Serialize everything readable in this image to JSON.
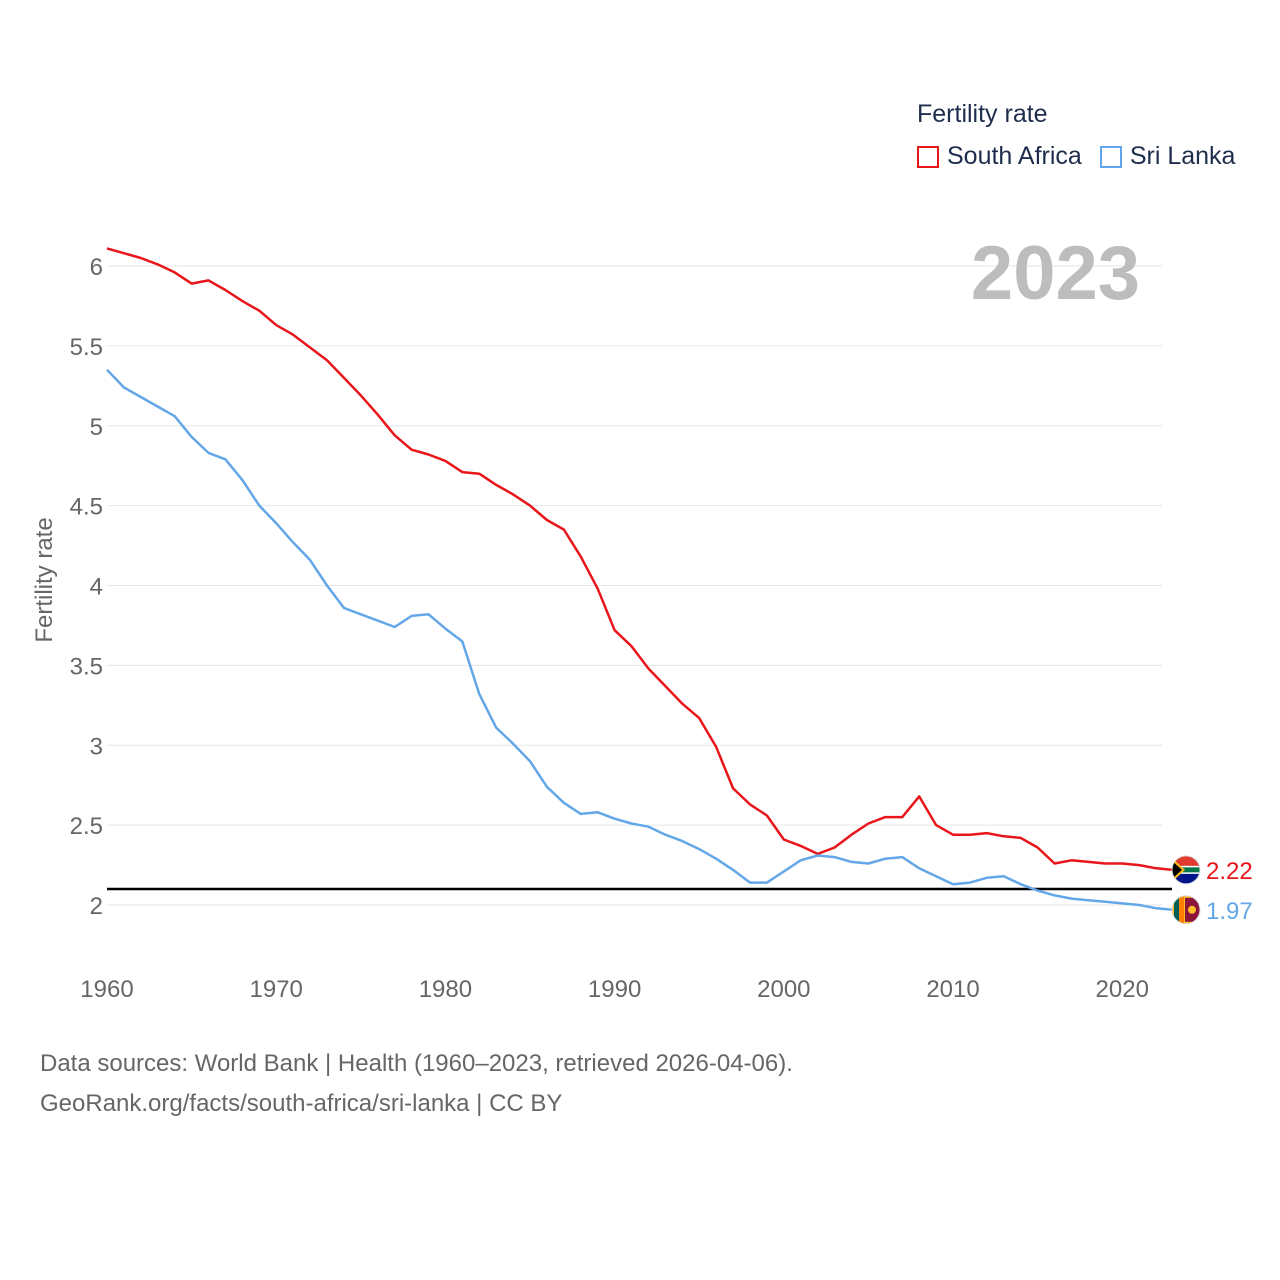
{
  "legend": {
    "title": "Fertility rate",
    "items": [
      {
        "name": "South Africa",
        "color": "#e8161b"
      },
      {
        "name": "Sri Lanka",
        "color": "#64a7e8"
      }
    ]
  },
  "year_label": "2023",
  "source": {
    "line1": "Data sources: World Bank | Health (1960–2023, retrieved 2026-04-06).",
    "line2": "GeoRank.org/facts/south-africa/sri-lanka | CC BY"
  },
  "chart_data": {
    "type": "line",
    "title": "Fertility rate",
    "xlabel": "",
    "ylabel": "Fertility rate",
    "xlim": [
      1960,
      2023
    ],
    "ylim": [
      1.7,
      6.2
    ],
    "x_ticks": [
      1960,
      1970,
      1980,
      1990,
      2000,
      2010,
      2020
    ],
    "y_ticks": [
      2,
      2.5,
      3,
      3.5,
      4,
      4.5,
      5,
      5.5,
      6
    ],
    "y_tick_labels": [
      "2",
      "2.5",
      "3",
      "3.5",
      "4",
      "4.5",
      "5",
      "5.5",
      "6"
    ],
    "grid": true,
    "reference_line": {
      "y": 2.1,
      "color": "#000000"
    },
    "x": [
      1960,
      1961,
      1962,
      1963,
      1964,
      1965,
      1966,
      1967,
      1968,
      1969,
      1970,
      1971,
      1972,
      1973,
      1974,
      1975,
      1976,
      1977,
      1978,
      1979,
      1980,
      1981,
      1982,
      1983,
      1984,
      1985,
      1986,
      1987,
      1988,
      1989,
      1990,
      1991,
      1992,
      1993,
      1994,
      1995,
      1996,
      1997,
      1998,
      1999,
      2000,
      2001,
      2002,
      2003,
      2004,
      2005,
      2006,
      2007,
      2008,
      2009,
      2010,
      2011,
      2012,
      2013,
      2014,
      2015,
      2016,
      2017,
      2018,
      2019,
      2020,
      2021,
      2022,
      2023
    ],
    "series": [
      {
        "name": "South Africa",
        "color": "#e8161b",
        "end_label": "2.22",
        "values": [
          6.11,
          6.08,
          6.05,
          6.01,
          5.96,
          5.89,
          5.91,
          5.85,
          5.78,
          5.72,
          5.63,
          5.57,
          5.49,
          5.41,
          5.3,
          5.19,
          5.07,
          4.94,
          4.85,
          4.82,
          4.78,
          4.71,
          4.7,
          4.63,
          4.57,
          4.5,
          4.41,
          4.35,
          4.18,
          3.98,
          3.72,
          3.62,
          3.48,
          3.37,
          3.26,
          3.17,
          2.99,
          2.73,
          2.63,
          2.56,
          2.41,
          2.37,
          2.32,
          2.36,
          2.44,
          2.51,
          2.55,
          2.55,
          2.68,
          2.5,
          2.44,
          2.44,
          2.45,
          2.43,
          2.42,
          2.36,
          2.26,
          2.28,
          2.27,
          2.26,
          2.26,
          2.25,
          2.23,
          2.22
        ]
      },
      {
        "name": "Sri Lanka",
        "color": "#64a7e8",
        "end_label": "1.97",
        "values": [
          5.35,
          5.24,
          5.18,
          5.12,
          5.06,
          4.93,
          4.83,
          4.79,
          4.66,
          4.5,
          4.39,
          4.27,
          4.16,
          4.0,
          3.86,
          3.82,
          3.78,
          3.74,
          3.81,
          3.82,
          3.73,
          3.65,
          3.32,
          3.11,
          3.01,
          2.9,
          2.74,
          2.64,
          2.57,
          2.58,
          2.54,
          2.51,
          2.49,
          2.44,
          2.4,
          2.35,
          2.29,
          2.22,
          2.14,
          2.14,
          2.21,
          2.28,
          2.31,
          2.3,
          2.27,
          2.26,
          2.29,
          2.3,
          2.23,
          2.18,
          2.13,
          2.14,
          2.17,
          2.18,
          2.13,
          2.09,
          2.06,
          2.04,
          2.03,
          2.02,
          2.01,
          2.0,
          1.98,
          1.97
        ]
      }
    ]
  }
}
